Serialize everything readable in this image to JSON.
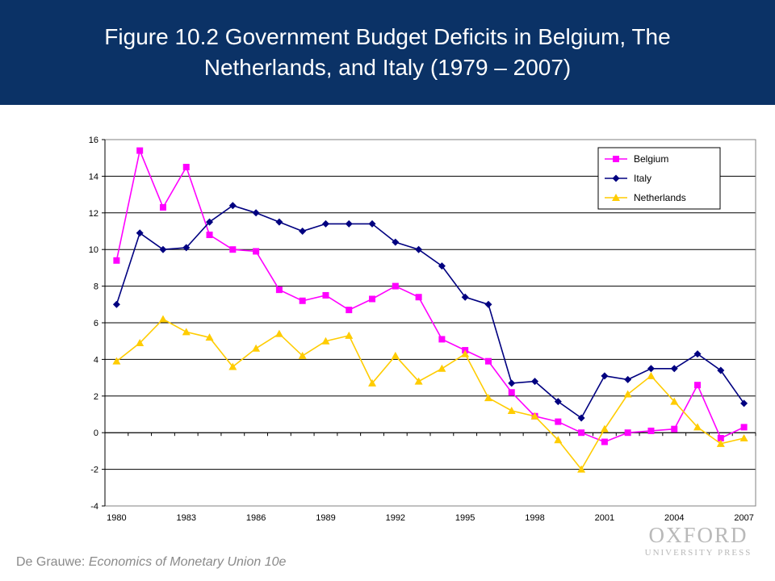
{
  "header": {
    "title_line1": "Figure 10.2 Government Budget Deficits in Belgium, The",
    "title_line2": "Netherlands, and Italy (1979 – 2007)",
    "accent_color": "#0b3266"
  },
  "footer": {
    "author": "De Grauwe: ",
    "book_title": "Economics of Monetary Union 10e"
  },
  "publisher": {
    "line1": "OXFORD",
    "line2": "UNIVERSITY PRESS"
  },
  "chart_data": {
    "type": "line",
    "title": "",
    "xlabel": "",
    "ylabel": "",
    "x": [
      1980,
      1981,
      1982,
      1983,
      1984,
      1985,
      1986,
      1987,
      1988,
      1989,
      1990,
      1991,
      1992,
      1993,
      1994,
      1995,
      1996,
      1997,
      1998,
      1999,
      2000,
      2001,
      2002,
      2003,
      2004,
      2005,
      2006,
      2007
    ],
    "x_tick_labels": [
      "1980",
      "1983",
      "1986",
      "1989",
      "1992",
      "1995",
      "1998",
      "2001",
      "2004",
      "2007"
    ],
    "ylim": [
      -4,
      16
    ],
    "y_ticks": [
      -4,
      -2,
      0,
      2,
      4,
      6,
      8,
      10,
      12,
      14,
      16
    ],
    "grid": "horizontal",
    "legend_position": "top-right",
    "series": [
      {
        "name": "Belgium",
        "color": "#ff00ff",
        "marker": "square",
        "values": [
          9.4,
          15.4,
          12.3,
          14.5,
          10.8,
          10.0,
          9.9,
          7.8,
          7.2,
          7.5,
          6.7,
          7.3,
          8.0,
          7.4,
          5.1,
          4.5,
          3.9,
          2.2,
          0.9,
          0.6,
          0.0,
          -0.5,
          0.0,
          0.1,
          0.2,
          2.6,
          -0.3,
          0.3
        ]
      },
      {
        "name": "Italy",
        "color": "#000080",
        "marker": "diamond",
        "values": [
          7.0,
          10.9,
          10.0,
          10.1,
          11.5,
          12.4,
          12.0,
          11.5,
          11.0,
          11.4,
          11.4,
          11.4,
          10.4,
          10.0,
          9.1,
          7.4,
          7.0,
          2.7,
          2.8,
          1.7,
          0.8,
          3.1,
          2.9,
          3.5,
          3.5,
          4.3,
          3.4,
          1.6
        ]
      },
      {
        "name": "Netherlands",
        "color": "#ffcc00",
        "marker": "triangle",
        "values": [
          3.9,
          4.9,
          6.2,
          5.5,
          5.2,
          3.6,
          4.6,
          5.4,
          4.2,
          5.0,
          5.3,
          2.7,
          4.2,
          2.8,
          3.5,
          4.3,
          1.9,
          1.2,
          0.9,
          -0.4,
          -2.0,
          0.2,
          2.1,
          3.1,
          1.7,
          0.3,
          -0.6,
          -0.3
        ]
      }
    ]
  }
}
